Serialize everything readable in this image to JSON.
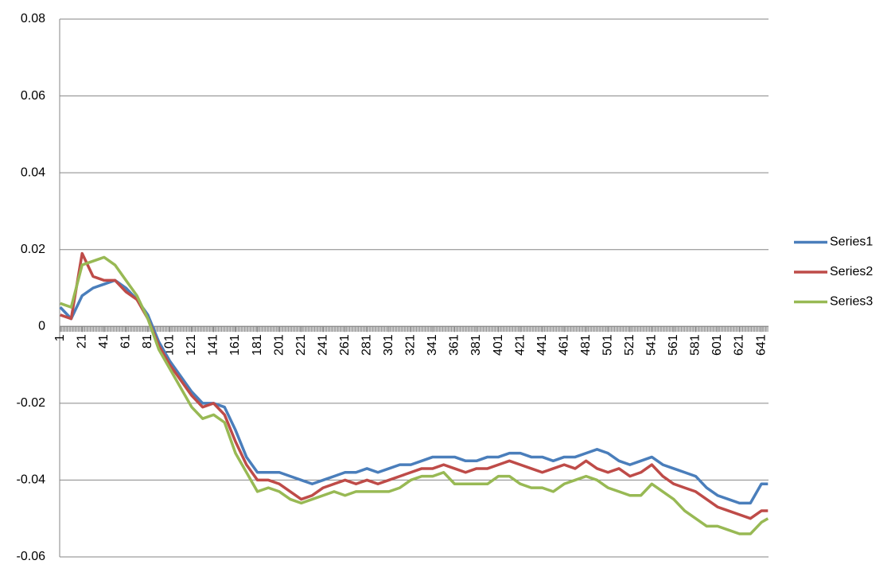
{
  "chart_data": {
    "type": "line",
    "x": [
      1,
      11,
      21,
      31,
      41,
      51,
      61,
      71,
      81,
      91,
      101,
      111,
      121,
      131,
      141,
      151,
      161,
      171,
      181,
      191,
      201,
      211,
      221,
      231,
      241,
      251,
      261,
      271,
      281,
      291,
      301,
      311,
      321,
      331,
      341,
      351,
      361,
      371,
      381,
      391,
      401,
      411,
      421,
      431,
      441,
      451,
      461,
      471,
      481,
      491,
      501,
      511,
      521,
      531,
      541,
      551,
      561,
      571,
      581,
      591,
      601,
      611,
      621,
      631,
      641,
      647
    ],
    "series": [
      {
        "name": "Series1",
        "color": "#4a7ebb",
        "values": [
          0.005,
          0.002,
          0.008,
          0.01,
          0.011,
          0.012,
          0.01,
          0.007,
          0.003,
          -0.004,
          -0.009,
          -0.013,
          -0.017,
          -0.02,
          -0.02,
          -0.021,
          -0.027,
          -0.034,
          -0.038,
          -0.038,
          -0.038,
          -0.039,
          -0.04,
          -0.041,
          -0.04,
          -0.039,
          -0.038,
          -0.038,
          -0.037,
          -0.038,
          -0.037,
          -0.036,
          -0.036,
          -0.035,
          -0.034,
          -0.034,
          -0.034,
          -0.035,
          -0.035,
          -0.034,
          -0.034,
          -0.033,
          -0.033,
          -0.034,
          -0.034,
          -0.035,
          -0.034,
          -0.034,
          -0.033,
          -0.032,
          -0.033,
          -0.035,
          -0.036,
          -0.035,
          -0.034,
          -0.036,
          -0.037,
          -0.038,
          -0.039,
          -0.042,
          -0.044,
          -0.045,
          -0.046,
          -0.046,
          -0.041,
          -0.041
        ]
      },
      {
        "name": "Series2",
        "color": "#be4b48",
        "values": [
          0.003,
          0.002,
          0.019,
          0.013,
          0.012,
          0.012,
          0.009,
          0.007,
          0.002,
          -0.005,
          -0.01,
          -0.014,
          -0.018,
          -0.021,
          -0.02,
          -0.023,
          -0.03,
          -0.036,
          -0.04,
          -0.04,
          -0.041,
          -0.043,
          -0.045,
          -0.044,
          -0.042,
          -0.041,
          -0.04,
          -0.041,
          -0.04,
          -0.041,
          -0.04,
          -0.039,
          -0.038,
          -0.037,
          -0.037,
          -0.036,
          -0.037,
          -0.038,
          -0.037,
          -0.037,
          -0.036,
          -0.035,
          -0.036,
          -0.037,
          -0.038,
          -0.037,
          -0.036,
          -0.037,
          -0.035,
          -0.037,
          -0.038,
          -0.037,
          -0.039,
          -0.038,
          -0.036,
          -0.039,
          -0.041,
          -0.042,
          -0.043,
          -0.045,
          -0.047,
          -0.048,
          -0.049,
          -0.05,
          -0.048,
          -0.048
        ]
      },
      {
        "name": "Series3",
        "color": "#98b954",
        "values": [
          0.006,
          0.005,
          0.016,
          0.017,
          0.018,
          0.016,
          0.012,
          0.008,
          0.002,
          -0.006,
          -0.011,
          -0.016,
          -0.021,
          -0.024,
          -0.023,
          -0.025,
          -0.033,
          -0.038,
          -0.043,
          -0.042,
          -0.043,
          -0.045,
          -0.046,
          -0.045,
          -0.044,
          -0.043,
          -0.044,
          -0.043,
          -0.043,
          -0.043,
          -0.043,
          -0.042,
          -0.04,
          -0.039,
          -0.039,
          -0.038,
          -0.041,
          -0.041,
          -0.041,
          -0.041,
          -0.039,
          -0.039,
          -0.041,
          -0.042,
          -0.042,
          -0.043,
          -0.041,
          -0.04,
          -0.039,
          -0.04,
          -0.042,
          -0.043,
          -0.044,
          -0.044,
          -0.041,
          -0.043,
          -0.045,
          -0.048,
          -0.05,
          -0.052,
          -0.052,
          -0.053,
          -0.054,
          -0.054,
          -0.051,
          -0.05
        ]
      }
    ],
    "xlim": [
      0.5,
      647.5
    ],
    "xticks": [
      1,
      21,
      41,
      61,
      81,
      101,
      121,
      141,
      161,
      181,
      201,
      221,
      241,
      261,
      281,
      301,
      321,
      341,
      361,
      381,
      401,
      421,
      441,
      461,
      481,
      501,
      521,
      541,
      561,
      581,
      601,
      621,
      641
    ],
    "ylim": [
      -0.06,
      0.08
    ],
    "yticks": [
      -0.06,
      -0.04,
      -0.02,
      0,
      0.02,
      0.04,
      0.06,
      0.08
    ],
    "grid": true,
    "legend": "right"
  }
}
